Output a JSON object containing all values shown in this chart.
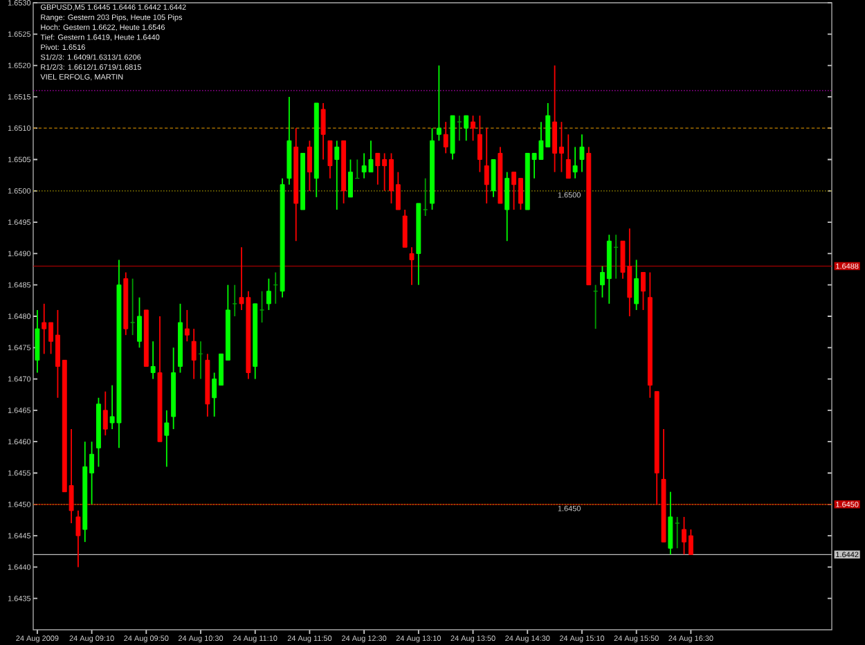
{
  "chart_data": {
    "type": "candlestick",
    "title": "GBPUSD,M5 1.6445 1.6446 1.6442 1.6442",
    "annotations": [
      "Range: Gestern 203 Pips, Heute 105 Pips",
      "Hoch: Gestern 1.6622, Heute 1.6546",
      "Tief: Gestern 1.6419, Heute 1.6440",
      "Pivot: 1.6516",
      "S1/2/3: 1.6409/1.6313/1.6206",
      "R1/2/3: 1.6612/1.6719/1.6815",
      "VIEL ERFOLG, MARTIN"
    ],
    "categories": [
      "24 Aug 2009",
      null,
      null,
      null,
      null,
      null,
      null,
      null,
      "24 Aug 09:10",
      null,
      null,
      null,
      null,
      null,
      null,
      null,
      "24 Aug 09:50",
      null,
      null,
      null,
      null,
      null,
      null,
      null,
      "24 Aug 10:30",
      null,
      null,
      null,
      null,
      null,
      null,
      null,
      "24 Aug 11:10",
      null,
      null,
      null,
      null,
      null,
      null,
      null,
      "24 Aug 11:50",
      null,
      null,
      null,
      null,
      null,
      null,
      null,
      "24 Aug 12:30",
      null,
      null,
      null,
      null,
      null,
      null,
      null,
      "24 Aug 13:10",
      null,
      null,
      null,
      null,
      null,
      null,
      null,
      "24 Aug 13:50",
      null,
      null,
      null,
      null,
      null,
      null,
      null,
      "24 Aug 14:30",
      null,
      null,
      null,
      null,
      null,
      null,
      null,
      "24 Aug 15:10",
      null,
      null,
      null,
      null,
      null,
      null,
      null,
      "24 Aug 15:50",
      null,
      null,
      null,
      null,
      null,
      null,
      null,
      "24 Aug 16:30"
    ],
    "ohlc": [
      [
        1.6473,
        1.6481,
        1.6471,
        1.6478
      ],
      [
        1.6479,
        1.6482,
        1.6474,
        1.6478
      ],
      [
        1.6479,
        1.6479,
        1.6474,
        1.6476
      ],
      [
        1.6477,
        1.6481,
        1.6467,
        1.6472
      ],
      [
        1.6473,
        1.6473,
        1.6452,
        1.6452
      ],
      [
        1.6453,
        1.6462,
        1.6447,
        1.6449
      ],
      [
        1.6448,
        1.6449,
        1.644,
        1.6445
      ],
      [
        1.6446,
        1.646,
        1.6444,
        1.6456
      ],
      [
        1.6455,
        1.646,
        1.645,
        1.6458
      ],
      [
        1.6459,
        1.6467,
        1.6456,
        1.6466
      ],
      [
        1.6465,
        1.6468,
        1.6461,
        1.6462
      ],
      [
        1.6463,
        1.6469,
        1.6462,
        1.6464
      ],
      [
        1.6463,
        1.6489,
        1.6459,
        1.6485
      ],
      [
        1.6486,
        1.6487,
        1.6477,
        1.6478
      ],
      [
        1.6479,
        1.6486,
        1.6477,
        1.6479
      ],
      [
        1.6476,
        1.6483,
        1.6475,
        1.648
      ],
      [
        1.6481,
        1.6481,
        1.6472,
        1.6472
      ],
      [
        1.6471,
        1.6476,
        1.647,
        1.6472
      ],
      [
        1.6471,
        1.648,
        1.646,
        1.646
      ],
      [
        1.6461,
        1.6465,
        1.6456,
        1.6463
      ],
      [
        1.6464,
        1.6475,
        1.6462,
        1.6471
      ],
      [
        1.6472,
        1.6482,
        1.6471,
        1.6479
      ],
      [
        1.6478,
        1.6481,
        1.6476,
        1.6477
      ],
      [
        1.6476,
        1.6478,
        1.647,
        1.6473
      ],
      [
        1.6474,
        1.6476,
        1.647,
        1.6474
      ],
      [
        1.6473,
        1.6474,
        1.6464,
        1.6466
      ],
      [
        1.6467,
        1.6471,
        1.6464,
        1.647
      ],
      [
        1.6469,
        1.6474,
        1.6469,
        1.6474
      ],
      [
        1.6473,
        1.6485,
        1.6473,
        1.6481
      ],
      [
        1.6482,
        1.6485,
        1.648,
        1.6482
      ],
      [
        1.6483,
        1.6491,
        1.6481,
        1.6482
      ],
      [
        1.6483,
        1.6484,
        1.647,
        1.6471
      ],
      [
        1.6472,
        1.6482,
        1.647,
        1.6482
      ],
      [
        1.6481,
        1.6484,
        1.6479,
        1.6481
      ],
      [
        1.6482,
        1.6486,
        1.6481,
        1.6484
      ],
      [
        1.6485,
        1.6487,
        1.6482,
        1.6485
      ],
      [
        1.6484,
        1.6502,
        1.6483,
        1.6501
      ],
      [
        1.6502,
        1.6515,
        1.6501,
        1.6508
      ],
      [
        1.6507,
        1.651,
        1.6492,
        1.6498
      ],
      [
        1.6497,
        1.6506,
        1.6497,
        1.6506
      ],
      [
        1.6507,
        1.6508,
        1.65,
        1.6503
      ],
      [
        1.6502,
        1.6514,
        1.6499,
        1.6514
      ],
      [
        1.6513,
        1.6514,
        1.6505,
        1.6509
      ],
      [
        1.6508,
        1.6508,
        1.6502,
        1.6504
      ],
      [
        1.6505,
        1.6508,
        1.6497,
        1.6507
      ],
      [
        1.6508,
        1.6508,
        1.6498,
        1.65
      ],
      [
        1.6499,
        1.6505,
        1.6499,
        1.6503
      ],
      [
        1.6502,
        1.6505,
        1.6502,
        1.6502
      ],
      [
        1.6503,
        1.6506,
        1.6502,
        1.6504
      ],
      [
        1.6503,
        1.6508,
        1.6503,
        1.6505
      ],
      [
        1.6506,
        1.6506,
        1.6501,
        1.6504
      ],
      [
        1.6505,
        1.6506,
        1.65,
        1.6504
      ],
      [
        1.6505,
        1.6506,
        1.6498,
        1.65
      ],
      [
        1.6501,
        1.6503,
        1.6497,
        1.6497
      ],
      [
        1.6496,
        1.6497,
        1.6491,
        1.6491
      ],
      [
        1.649,
        1.6491,
        1.6485,
        1.6489
      ],
      [
        1.649,
        1.6498,
        1.6485,
        1.6498
      ],
      [
        1.6497,
        1.6502,
        1.6496,
        1.6497
      ],
      [
        1.6498,
        1.651,
        1.6497,
        1.6508
      ],
      [
        1.6509,
        1.652,
        1.6508,
        1.651
      ],
      [
        1.6509,
        1.6511,
        1.6506,
        1.6507
      ],
      [
        1.6506,
        1.6512,
        1.6505,
        1.6512
      ],
      [
        1.6511,
        1.6512,
        1.6508,
        1.6511
      ],
      [
        1.651,
        1.6512,
        1.6508,
        1.6512
      ],
      [
        1.6511,
        1.6512,
        1.6508,
        1.651
      ],
      [
        1.6509,
        1.6512,
        1.6503,
        1.6505
      ],
      [
        1.6504,
        1.651,
        1.6498,
        1.6501
      ],
      [
        1.65,
        1.6505,
        1.6499,
        1.6505
      ],
      [
        1.6506,
        1.6507,
        1.6498,
        1.6498
      ],
      [
        1.6497,
        1.6503,
        1.6492,
        1.6502
      ],
      [
        1.6503,
        1.6503,
        1.6497,
        1.6501
      ],
      [
        1.6502,
        1.6502,
        1.6497,
        1.6498
      ],
      [
        1.6497,
        1.6506,
        1.6497,
        1.6506
      ],
      [
        1.6505,
        1.6506,
        1.6502,
        1.6506
      ],
      [
        1.6505,
        1.6511,
        1.6505,
        1.6508
      ],
      [
        1.6507,
        1.6514,
        1.6507,
        1.6512
      ],
      [
        1.6511,
        1.652,
        1.6503,
        1.6506
      ],
      [
        1.6507,
        1.6511,
        1.6503,
        1.6506
      ],
      [
        1.6505,
        1.6509,
        1.6502,
        1.6502
      ],
      [
        1.6503,
        1.6507,
        1.6502,
        1.6504
      ],
      [
        1.6505,
        1.6509,
        1.6503,
        1.6507
      ],
      [
        1.6506,
        1.6507,
        1.6485,
        1.6485
      ],
      [
        1.6484,
        1.6485,
        1.6478,
        1.6484
      ],
      [
        1.6485,
        1.6488,
        1.6483,
        1.6487
      ],
      [
        1.6486,
        1.6493,
        1.6482,
        1.6492
      ],
      [
        1.6491,
        1.6493,
        1.6486,
        1.6491
      ],
      [
        1.6492,
        1.6492,
        1.6486,
        1.6487
      ],
      [
        1.6488,
        1.6494,
        1.648,
        1.6483
      ],
      [
        1.6482,
        1.6489,
        1.6481,
        1.6486
      ],
      [
        1.6487,
        1.6487,
        1.6481,
        1.6484
      ],
      [
        1.6483,
        1.6487,
        1.6467,
        1.6469
      ],
      [
        1.6468,
        1.6468,
        1.645,
        1.6455
      ],
      [
        1.6454,
        1.6462,
        1.6444,
        1.6444
      ],
      [
        1.6443,
        1.6452,
        1.6442,
        1.6448
      ],
      [
        1.6447,
        1.6448,
        1.6443,
        1.6447
      ],
      [
        1.6446,
        1.6448,
        1.6442,
        1.6444
      ],
      [
        1.6445,
        1.6446,
        1.6442,
        1.6442
      ]
    ],
    "colors": [
      "#00ff00",
      "#ff0000",
      "#ff0000",
      "#ff0000",
      "#ff0000",
      "#ff0000",
      "#ff0000",
      "#00ff00",
      "#00ff00",
      "#00ff00",
      "#ff0000",
      "#00ff00",
      "#00ff00",
      "#ff0000",
      "#00a000",
      "#00ff00",
      "#ff0000",
      "#00ff00",
      "#ff0000",
      "#00ff00",
      "#00ff00",
      "#00ff00",
      "#ff0000",
      "#ff0000",
      "#00a000",
      "#ff0000",
      "#00ff00",
      "#00ff00",
      "#00ff00",
      "#00a000",
      "#ff0000",
      "#ff0000",
      "#00ff00",
      "#00a000",
      "#00ff00",
      "#00a000",
      "#00ff00",
      "#00ff00",
      "#ff0000",
      "#00ff00",
      "#ff0000",
      "#00ff00",
      "#ff0000",
      "#ff0000",
      "#00ff00",
      "#ff0000",
      "#00ff00",
      "#00a000",
      "#00ff00",
      "#00ff00",
      "#ff0000",
      "#ff0000",
      "#ff0000",
      "#ff0000",
      "#ff0000",
      "#ff0000",
      "#00ff00",
      "#00a000",
      "#00ff00",
      "#00ff00",
      "#ff0000",
      "#00ff00",
      "#00a000",
      "#00ff00",
      "#ff0000",
      "#ff0000",
      "#ff0000",
      "#00ff00",
      "#ff0000",
      "#00ff00",
      "#ff0000",
      "#ff0000",
      "#00ff00",
      "#00ff00",
      "#00ff00",
      "#00ff00",
      "#ff0000",
      "#ff0000",
      "#ff0000",
      "#00ff00",
      "#00ff00",
      "#ff0000",
      "#00a000",
      "#00ff00",
      "#00ff00",
      "#00a000",
      "#ff0000",
      "#ff0000",
      "#00ff00",
      "#ff0000",
      "#ff0000",
      "#ff0000",
      "#ff0000",
      "#00ff00",
      "#00a000",
      "#ff0000",
      "#ff0000"
    ],
    "ylim": [
      1.643,
      1.653
    ],
    "yticks": [
      1.6435,
      {
        "value": 1.644,
        "label": "1.6440"
      },
      1.6445,
      {
        "value": 1.645,
        "label": "1.6450"
      },
      1.6455,
      {
        "value": 1.646,
        "label": "1.6460"
      },
      1.6465,
      {
        "value": 1.647,
        "label": "1.6470"
      },
      1.6475,
      {
        "value": 1.648,
        "label": "1.6480"
      },
      1.6485,
      {
        "value": 1.649,
        "label": "1.6490"
      },
      1.6495,
      {
        "value": 1.65,
        "label": "1.6500"
      },
      1.6505,
      {
        "value": 1.651,
        "label": "1.6510"
      },
      1.6515,
      {
        "value": 1.652,
        "label": "1.6520"
      },
      1.6525,
      {
        "value": 1.653,
        "label": "1.6530"
      }
    ],
    "ref_lines": [
      {
        "axis": "y",
        "value": 1.6516,
        "color": "#b000b0",
        "line_style": "dotted"
      },
      {
        "axis": "y",
        "value": 1.651,
        "color": "#c08000",
        "line_style": "dashed"
      },
      {
        "axis": "y",
        "value": 1.65,
        "label": "1.6500",
        "color": "#a09000",
        "line_style": "dotted"
      },
      {
        "axis": "y",
        "value": 1.6488,
        "label": "1.6488",
        "color": "#c00000",
        "line_style": "solid"
      },
      {
        "axis": "y",
        "value": 1.645,
        "label": "1.6450",
        "color": "#c00000",
        "line_style": "solid"
      },
      {
        "axis": "y",
        "value": 1.645,
        "label": "1.6450",
        "color": "#a09000",
        "line_style": "dotted"
      },
      {
        "axis": "y",
        "value": 1.6442,
        "label": "1.6442",
        "color": "#c0c0c0",
        "line_style": "solid"
      }
    ]
  }
}
